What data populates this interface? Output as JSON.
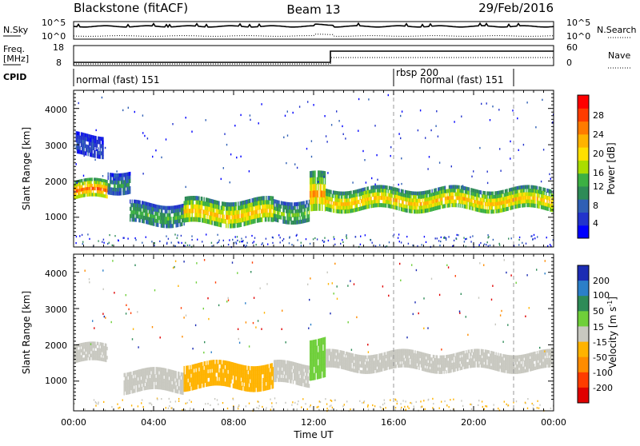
{
  "header": {
    "site": "Blackstone (fitACF)",
    "beam": "Beam 13",
    "date": "29/Feb/2016"
  },
  "noise_panel": {
    "left_label": "N.Sky",
    "right_label": "N.Search",
    "left_ticks": [
      "10^5",
      "10^0"
    ],
    "right_ticks": [
      "10^5",
      "10^0"
    ]
  },
  "freq_panel": {
    "left_label_1": "Freq.",
    "left_label_2": "[MHz]",
    "right_label": "Nave",
    "left_ticks": [
      "18",
      "8"
    ],
    "right_ticks": [
      "60",
      "0"
    ]
  },
  "cpid_panel": {
    "label": "CPID",
    "programs": [
      {
        "name": "normal (fast) 151",
        "start_hour": 0
      },
      {
        "name": "rbsp 200",
        "start_hour": 16
      },
      {
        "name": "normal (fast) 151",
        "start_hour": 16
      }
    ],
    "markers_hours": [
      16,
      22
    ]
  },
  "power_panel": {
    "ylabel": "Slant Range [km]",
    "yticks": [
      "4000",
      "3000",
      "2000",
      "1000"
    ],
    "cbar_label": "Power [dB]",
    "cbar_ticks": [
      "28",
      "24",
      "20",
      "16",
      "12",
      "8",
      "4"
    ],
    "colors": [
      "#0000ff",
      "#2233cc",
      "#2f5fb5",
      "#2e8b57",
      "#3cb043",
      "#aadd00",
      "#ffe000",
      "#ffb300",
      "#ff7b00",
      "#ff3c00",
      "#ff0000"
    ]
  },
  "velocity_panel": {
    "ylabel": "Slant Range [km]",
    "yticks": [
      "4000",
      "3000",
      "2000",
      "1000"
    ],
    "cbar_label": "Velocity [m s",
    "cbar_label_sup": "-1",
    "cbar_label_end": "]",
    "cbar_ticks": [
      "200",
      "100",
      "50",
      "15",
      "-15",
      "-50",
      "-100",
      "-200"
    ],
    "colors": [
      "#1c2cb4",
      "#2b7fc9",
      "#2e8b57",
      "#6fcf3a",
      "#c8c8c0",
      "#ffb300",
      "#ff8c00",
      "#ff3c00",
      "#e00000"
    ]
  },
  "xaxis": {
    "label": "Time UT",
    "ticks": [
      "00:00",
      "04:00",
      "08:00",
      "12:00",
      "16:00",
      "20:00",
      "00:00"
    ]
  },
  "chart_data": [
    {
      "type": "heatmap",
      "title": "Blackstone (fitACF) Beam 13 29/Feb/2016",
      "xlabel": "Time UT",
      "ylabel": "Slant Range [km]",
      "xlim": [
        0,
        24
      ],
      "ylim": [
        180,
        4500
      ],
      "colorbar": {
        "label": "Power [dB]",
        "range": [
          0,
          30
        ]
      },
      "bands": [
        {
          "t_start": 0.0,
          "t_end": 1.7,
          "range_km": [
            1500,
            2000
          ],
          "power_db": 24
        },
        {
          "t_start": 1.7,
          "t_end": 2.8,
          "range_km": [
            1700,
            2300
          ],
          "power_db": 10
        },
        {
          "t_start": 0.1,
          "t_end": 1.5,
          "range_km": [
            2700,
            3300
          ],
          "power_db": 6
        },
        {
          "t_start": 2.8,
          "t_end": 5.5,
          "range_km": [
            800,
            1400
          ],
          "power_db": 12
        },
        {
          "t_start": 5.5,
          "t_end": 10.0,
          "range_km": [
            800,
            1500
          ],
          "power_db": 20
        },
        {
          "t_start": 10.0,
          "t_end": 11.8,
          "range_km": [
            900,
            1500
          ],
          "power_db": 14
        },
        {
          "t_start": 11.8,
          "t_end": 12.6,
          "range_km": [
            1100,
            2200
          ],
          "power_db": 22
        },
        {
          "t_start": 12.6,
          "t_end": 24.0,
          "range_km": [
            1200,
            1800
          ],
          "power_db": 20
        }
      ]
    },
    {
      "type": "heatmap",
      "title": "Blackstone (fitACF) Beam 13 29/Feb/2016",
      "xlabel": "Time UT",
      "ylabel": "Slant Range [km]",
      "xlim": [
        0,
        24
      ],
      "ylim": [
        180,
        4500
      ],
      "colorbar": {
        "label": "Velocity [m s-1]",
        "range": [
          -200,
          200
        ]
      },
      "bands": [
        {
          "t_start": 0.0,
          "t_end": 1.7,
          "range_km": [
            1500,
            2000
          ],
          "velocity": 0
        },
        {
          "t_start": 2.5,
          "t_end": 5.5,
          "range_km": [
            700,
            1300
          ],
          "velocity": 0
        },
        {
          "t_start": 5.5,
          "t_end": 10.0,
          "range_km": [
            800,
            1500
          ],
          "velocity": -30
        },
        {
          "t_start": 10.0,
          "t_end": 11.8,
          "range_km": [
            900,
            1500
          ],
          "velocity": 0
        },
        {
          "t_start": 11.8,
          "t_end": 12.6,
          "range_km": [
            1100,
            2200
          ],
          "velocity": 40
        },
        {
          "t_start": 12.6,
          "t_end": 24.0,
          "range_km": [
            1300,
            1800
          ],
          "velocity": 0
        }
      ]
    }
  ]
}
